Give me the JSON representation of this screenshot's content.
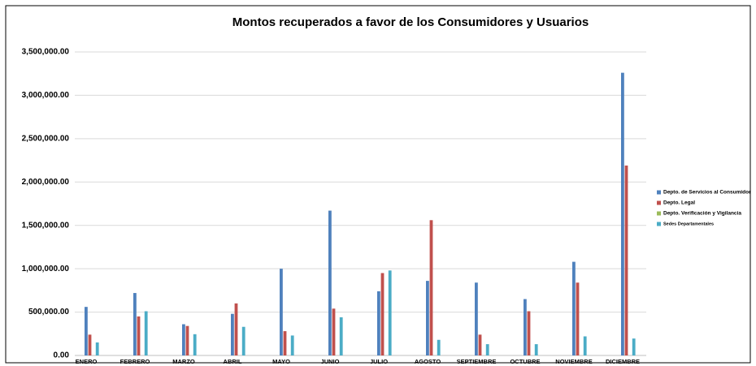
{
  "chart_data": {
    "type": "bar",
    "title": "Montos recuperados a favor de los Consumidores y Usuarios",
    "categories": [
      "ENERO",
      "FEBRERO",
      "MARZO",
      "ABRIL",
      "MAYO",
      "JUNIO",
      "JULIO",
      "AGOSTO",
      "SEPTIEMBRE",
      "OCTUBRE",
      "NOVIEMBRE",
      "DICIEMBRE"
    ],
    "series": [
      {
        "name": "Depto. de Servicios al Consumidor",
        "color": "#4f81bd",
        "values": [
          560000,
          720000,
          360000,
          480000,
          1000000,
          1670000,
          740000,
          860000,
          840000,
          650000,
          1080000,
          3260000
        ]
      },
      {
        "name": "Depto. Legal",
        "color": "#c0504d",
        "values": [
          240000,
          450000,
          340000,
          600000,
          280000,
          540000,
          950000,
          1560000,
          240000,
          510000,
          840000,
          2190000
        ]
      },
      {
        "name": "Depto. Verificación y Vigilancia",
        "color": "#9bbb59",
        "values": [
          0,
          0,
          0,
          0,
          0,
          0,
          0,
          0,
          0,
          0,
          0,
          0
        ]
      },
      {
        "name": "Sedes Departamentales",
        "color": "#4bacc6",
        "values": [
          150000,
          510000,
          245000,
          330000,
          230000,
          440000,
          980000,
          180000,
          130000,
          130000,
          220000,
          195000
        ]
      }
    ],
    "ylim": [
      0,
      3500000
    ],
    "yticks": [
      {
        "value": 0,
        "label": "0.00"
      },
      {
        "value": 500000,
        "label": "500,000.00"
      },
      {
        "value": 1000000,
        "label": "1,000,000.00"
      },
      {
        "value": 1500000,
        "label": "1,500,000.00"
      },
      {
        "value": 2000000,
        "label": "2,000,000.00"
      },
      {
        "value": 2500000,
        "label": "2,500,000.00"
      },
      {
        "value": 3000000,
        "label": "3,000,000.00"
      },
      {
        "value": 3500000,
        "label": "3,500,000.00"
      }
    ],
    "grid": true,
    "legend": "right"
  }
}
